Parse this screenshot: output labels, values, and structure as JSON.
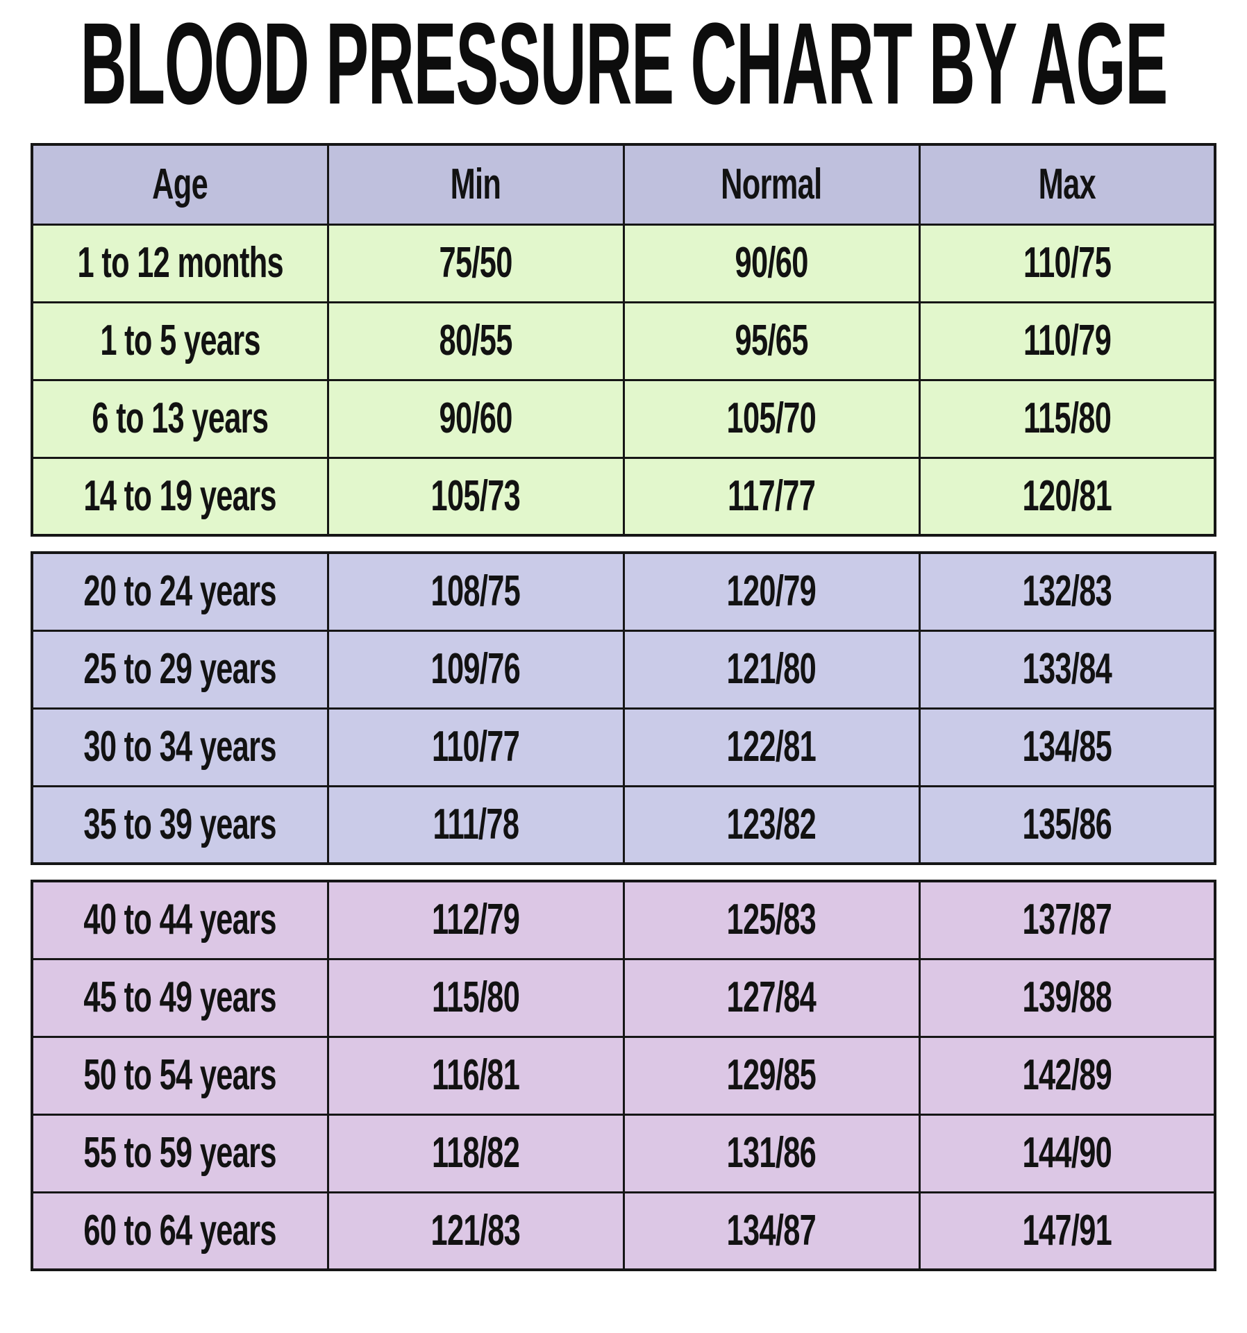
{
  "title": "BLOOD PRESSURE CHART BY AGE",
  "colors": {
    "page_bg": "#ffffff",
    "header_bg": "#bfc0dd",
    "green_bg": "#e2f7cc",
    "lavender_bg": "#cacbe8",
    "pink_bg": "#dcc7e5",
    "border": "#161616",
    "text": "#121212"
  },
  "chart_data": {
    "type": "table",
    "title": "BLOOD PRESSURE CHART BY AGE",
    "columns": [
      "Age",
      "Min",
      "Normal",
      "Max"
    ],
    "sections": [
      {
        "bg_color": "#e2f7cc",
        "rows": [
          [
            "1 to 12 months",
            "75/50",
            "90/60",
            "110/75"
          ],
          [
            "1 to 5 years",
            "80/55",
            "95/65",
            "110/79"
          ],
          [
            "6 to 13 years",
            "90/60",
            "105/70",
            "115/80"
          ],
          [
            "14 to 19 years",
            "105/73",
            "117/77",
            "120/81"
          ]
        ]
      },
      {
        "bg_color": "#cacbe8",
        "rows": [
          [
            "20 to 24 years",
            "108/75",
            "120/79",
            "132/83"
          ],
          [
            "25 to 29 years",
            "109/76",
            "121/80",
            "133/84"
          ],
          [
            "30 to 34 years",
            "110/77",
            "122/81",
            "134/85"
          ],
          [
            "35 to 39 years",
            "111/78",
            "123/82",
            "135/86"
          ]
        ]
      },
      {
        "bg_color": "#dcc7e5",
        "rows": [
          [
            "40 to 44 years",
            "112/79",
            "125/83",
            "137/87"
          ],
          [
            "45 to 49 years",
            "115/80",
            "127/84",
            "139/88"
          ],
          [
            "50 to 54 years",
            "116/81",
            "129/85",
            "142/89"
          ],
          [
            "55 to 59 years",
            "118/82",
            "131/86",
            "144/90"
          ],
          [
            "60 to 64 years",
            "121/83",
            "134/87",
            "147/91"
          ]
        ]
      }
    ]
  }
}
